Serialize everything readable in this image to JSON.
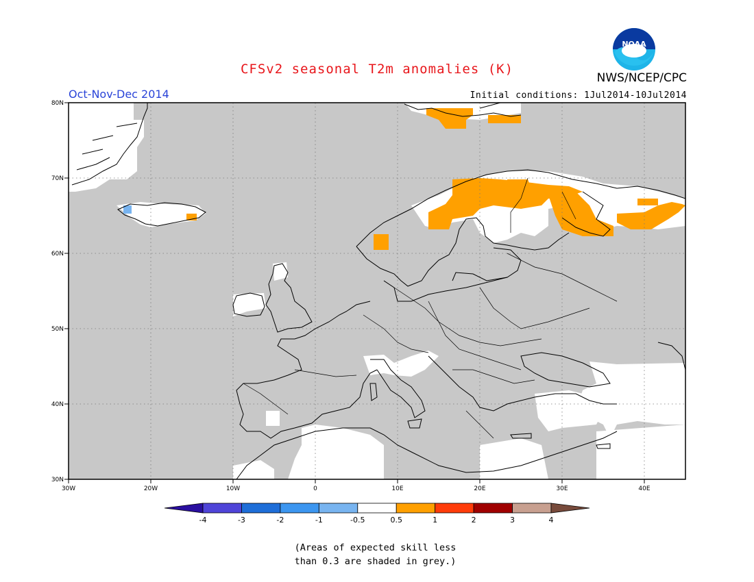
{
  "title": "CFSv2 seasonal T2m anomalies (K)",
  "agency": "NWS/NCEP/CPC",
  "logo_text": "NOAA",
  "period": "Oct-Nov-Dec 2014",
  "initial_conditions": "Initial conditions: 1Jul2014-10Jul2014",
  "note_line1": "(Areas of expected skill less",
  "note_line2": "than 0.3 are shaded in grey.)",
  "map": {
    "lon_range": [
      -30,
      45
    ],
    "lat_range": [
      30,
      80
    ],
    "lat_labels": [
      "80N",
      "70N",
      "60N",
      "50N",
      "40N",
      "30N"
    ],
    "lon_labels": [
      "30W",
      "20W",
      "10W",
      "0",
      "10E",
      "20E",
      "30E",
      "40E"
    ],
    "colors": {
      "low_skill_grey": "#c8c8c8",
      "neutral_white": "#ffffff",
      "warm_orange": "#ffa000",
      "cool_lightblue": "#78b4f0"
    }
  },
  "legend": {
    "labels": [
      "-4",
      "-3",
      "-2",
      "-1",
      "-0.5",
      "0.5",
      "1",
      "2",
      "3",
      "4"
    ],
    "colors": [
      "#2a0fa0",
      "#4f44d8",
      "#1e6ed8",
      "#3c96f0",
      "#78b4f0",
      "#ffffff",
      "#ffa000",
      "#ff3c0a",
      "#a00000",
      "#c8a090",
      "#784b3c"
    ]
  }
}
